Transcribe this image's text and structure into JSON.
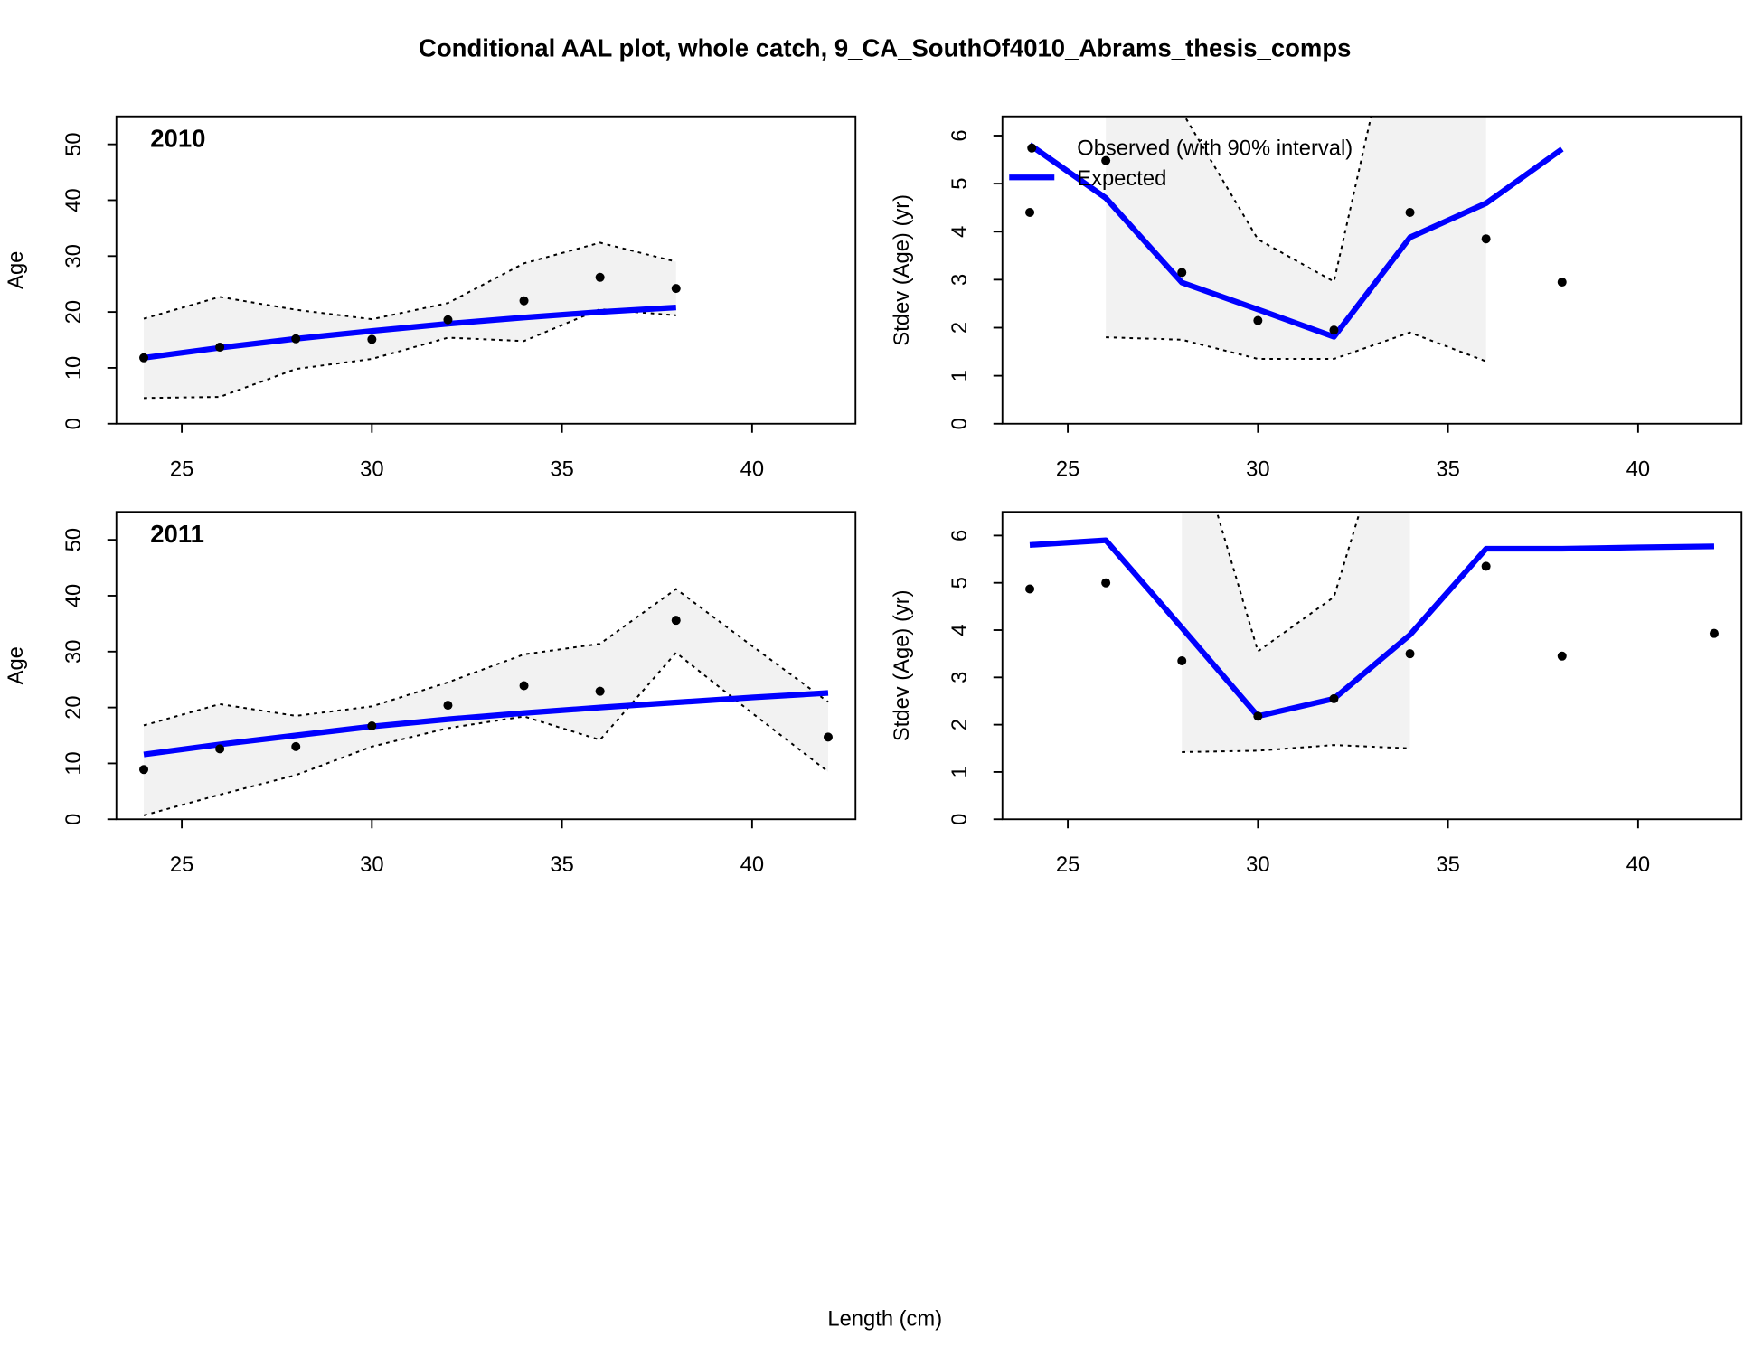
{
  "title": "Conditional AAL plot, whole catch, 9_CA_SouthOf4010_Abrams_thesis_comps",
  "xlabel": "Length (cm)",
  "chart_data": [
    {
      "type": "line",
      "label": "2010",
      "ylabel": "Age",
      "x": [
        24,
        26,
        28,
        30,
        32,
        34,
        36,
        38
      ],
      "series": [
        {
          "color": "#000000",
          "values": [
            11.8,
            13.7,
            15.2,
            15.1,
            18.6,
            22.0,
            26.2,
            24.2
          ]
        },
        {
          "color": "#0000ff",
          "values": [
            11.8,
            13.6,
            15.2,
            16.6,
            17.9,
            19.0,
            20.0,
            20.8
          ]
        }
      ],
      "interval_upper": [
        18.8,
        22.7,
        20.4,
        18.7,
        21.6,
        28.7,
        32.4,
        29.0
      ],
      "interval_lower": [
        4.6,
        4.8,
        9.8,
        11.6,
        15.4,
        14.8,
        20.5,
        19.4
      ],
      "xlim": [
        23.28,
        42.72
      ],
      "xticks": [
        25,
        30,
        35,
        40
      ],
      "ylim": [
        0,
        55
      ],
      "yticks": [
        0,
        10,
        20,
        30,
        40,
        50
      ]
    },
    {
      "type": "line",
      "ylabel": "Stdev (Age) (yr)",
      "x": [
        24,
        26,
        28,
        30,
        32,
        34,
        36,
        38
      ],
      "series": [
        {
          "name": "Observed (with 90% interval)",
          "color": "#000000",
          "values": [
            4.4,
            5.48,
            3.15,
            2.15,
            1.95,
            4.4,
            3.85,
            2.95
          ]
        },
        {
          "name": "Expected",
          "color": "#0000ff",
          "values": [
            5.81,
            4.7,
            2.94,
            2.38,
            1.81,
            3.88,
            4.59,
            5.72
          ]
        }
      ],
      "interval_upper": [
        null,
        9,
        6.5,
        3.84,
        2.96,
        10,
        10,
        null
      ],
      "interval_lower": [
        null,
        1.8,
        1.75,
        1.35,
        1.35,
        1.9,
        1.3,
        null
      ],
      "legend": "topleft",
      "xlim": [
        23.28,
        42.72
      ],
      "xticks": [
        25,
        30,
        35,
        40
      ],
      "ylim": [
        0,
        6.4
      ],
      "yticks": [
        0,
        1,
        2,
        3,
        4,
        5,
        6
      ]
    },
    {
      "type": "line",
      "label": "2011",
      "ylabel": "Age",
      "x": [
        24,
        26,
        28,
        30,
        32,
        34,
        36,
        38,
        40,
        42
      ],
      "series": [
        {
          "color": "#000000",
          "values": [
            8.9,
            12.6,
            13.0,
            16.7,
            20.4,
            23.9,
            22.9,
            35.6,
            null,
            14.7
          ]
        },
        {
          "color": "#0000ff",
          "values": [
            11.6,
            13.4,
            15.0,
            16.6,
            17.9,
            19.0,
            20.0,
            20.9,
            21.8,
            22.6
          ]
        }
      ],
      "interval_upper": [
        16.8,
        20.6,
        18.5,
        20.2,
        24.5,
        29.5,
        31.4,
        41.2,
        31.0,
        21.0
      ],
      "interval_lower": [
        0.7,
        4.4,
        7.9,
        13.0,
        16.3,
        18.4,
        14.2,
        29.8,
        19.0,
        8.5
      ],
      "xlim": [
        23.28,
        42.72
      ],
      "xticks": [
        25,
        30,
        35,
        40
      ],
      "ylim": [
        0,
        55
      ],
      "yticks": [
        0,
        10,
        20,
        30,
        40,
        50
      ]
    },
    {
      "type": "line",
      "ylabel": "Stdev (Age) (yr)",
      "x": [
        24,
        26,
        28,
        30,
        32,
        34,
        36,
        38,
        40,
        42
      ],
      "series": [
        {
          "color": "#000000",
          "values": [
            4.87,
            5.0,
            3.35,
            2.18,
            2.55,
            3.5,
            5.35,
            3.45,
            null,
            3.93
          ]
        },
        {
          "color": "#0000ff",
          "values": [
            5.8,
            5.9,
            4.05,
            2.18,
            2.55,
            3.9,
            5.72,
            5.72,
            5.75,
            5.77
          ]
        }
      ],
      "interval_upper": [
        null,
        null,
        9,
        3.55,
        4.7,
        10,
        null,
        null,
        null,
        null
      ],
      "interval_lower": [
        null,
        null,
        1.42,
        1.45,
        1.57,
        1.5,
        null,
        null,
        null,
        null
      ],
      "xlim": [
        23.28,
        42.72
      ],
      "xticks": [
        25,
        30,
        35,
        40
      ],
      "ylim": [
        0,
        6.5
      ],
      "yticks": [
        0,
        1,
        2,
        3,
        4,
        5,
        6
      ]
    }
  ]
}
